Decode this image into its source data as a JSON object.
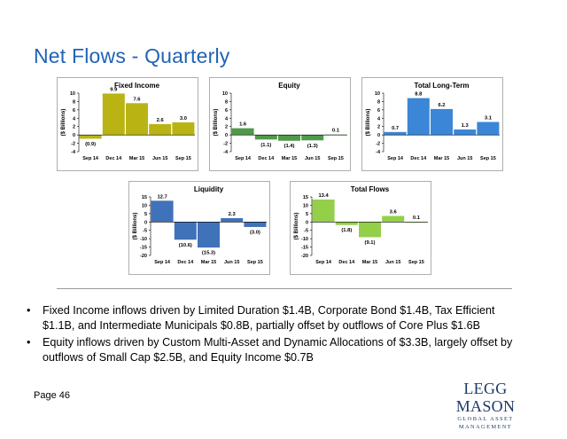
{
  "title": "Net Flows - Quarterly",
  "page_number": "Page 46",
  "logo": {
    "main": "LEGG MASON",
    "sub": "GLOBAL ASSET MANAGEMENT"
  },
  "bullets": [
    "Fixed Income inflows driven by Limited Duration $1.4B, Corporate Bond $1.4B, Tax Efficient $1.1B, and Intermediate Municipals $0.8B, partially offset by outflows of Core Plus $1.6B",
    "Equity inflows driven by Custom Multi-Asset and Dynamic Allocations of $3.3B, largely offset by outflows of Small Cap $2.5B, and Equity Income $0.7B"
  ],
  "bullet_marker": "•",
  "chart_data": [
    {
      "type": "bar",
      "title": "Fixed Income",
      "ylabel": "($ Billions)",
      "categories": [
        "Sep 14",
        "Dec 14",
        "Mar 15",
        "Jun 15",
        "Sep 15"
      ],
      "values": [
        -0.9,
        9.9,
        7.6,
        2.6,
        3.0
      ],
      "labels": [
        "(0.9)",
        "9.9",
        "7.6",
        "2.6",
        "3.0"
      ],
      "ylim": [
        -4,
        10
      ],
      "ticks": [
        -4,
        -2,
        0,
        2,
        4,
        6,
        8,
        10
      ],
      "color": "#b9b413"
    },
    {
      "type": "bar",
      "title": "Equity",
      "ylabel": "($ Billions)",
      "categories": [
        "Sep 14",
        "Dec 14",
        "Mar 15",
        "Jun 15",
        "Sep 15"
      ],
      "values": [
        1.6,
        -1.1,
        -1.4,
        -1.3,
        0.1
      ],
      "labels": [
        "1.6",
        "(1.1)",
        "(1.4)",
        "(1.3)",
        "0.1"
      ],
      "ylim": [
        -4,
        10
      ],
      "ticks": [
        -4,
        -2,
        0,
        2,
        4,
        6,
        8,
        10
      ],
      "color": "#4f9a4a"
    },
    {
      "type": "bar",
      "title": "Total Long-Term",
      "ylabel": "($ Billions)",
      "categories": [
        "Sep 14",
        "Dec 14",
        "Mar 15",
        "Jun 15",
        "Sep 15"
      ],
      "values": [
        0.7,
        8.8,
        6.2,
        1.3,
        3.1
      ],
      "labels": [
        "0.7",
        "8.8",
        "6.2",
        "1.3",
        "3.1"
      ],
      "ylim": [
        -4,
        10
      ],
      "ticks": [
        -4,
        -2,
        0,
        2,
        4,
        6,
        8,
        10
      ],
      "color": "#3b86d6"
    },
    {
      "type": "bar",
      "title": "Liquidity",
      "ylabel": "($ Billions)",
      "categories": [
        "Sep 14",
        "Dec 14",
        "Mar 15",
        "Jun 15",
        "Sep 15"
      ],
      "values": [
        12.7,
        -10.6,
        -15.3,
        2.3,
        -3.0
      ],
      "labels": [
        "12.7",
        "(10.6)",
        "(15.3)",
        "2.3",
        "(3.0)"
      ],
      "ylim": [
        -20,
        15
      ],
      "ticks": [
        -20,
        -15,
        -10,
        -5,
        0,
        5,
        10,
        15
      ],
      "color": "#3f72b9"
    },
    {
      "type": "bar",
      "title": "Total Flows",
      "ylabel": "($ Billions)",
      "categories": [
        "Sep 14",
        "Dec 14",
        "Mar 15",
        "Jun 15",
        "Sep 15"
      ],
      "values": [
        13.4,
        -1.8,
        -9.1,
        3.6,
        0.1
      ],
      "labels": [
        "13.4",
        "(1.8)",
        "(9.1)",
        "3.6",
        "0.1"
      ],
      "ylim": [
        -20,
        15
      ],
      "ticks": [
        -20,
        -15,
        -10,
        -5,
        0,
        5,
        10,
        15
      ],
      "color": "#93cf48"
    }
  ]
}
